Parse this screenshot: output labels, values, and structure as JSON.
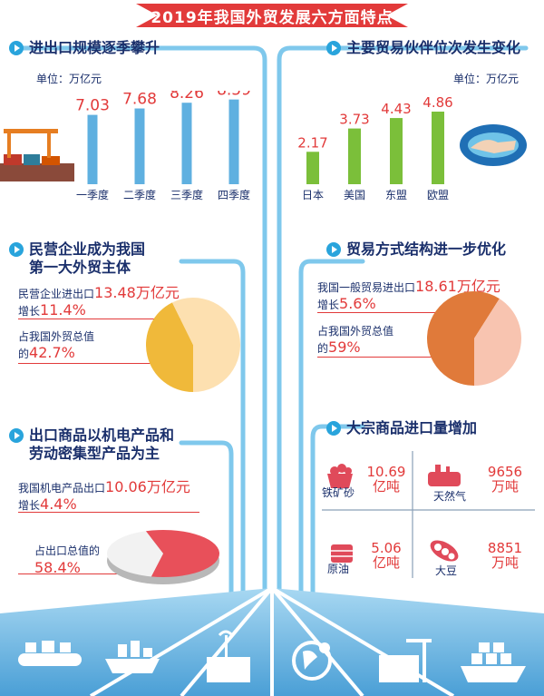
{
  "banner": {
    "title": "2019年我国外贸发展六方面特点"
  },
  "sections": {
    "scale": {
      "title": "进出口规模逐季攀升",
      "unit": "单位：万亿元"
    },
    "partners": {
      "title": "主要贸易伙伴位次发生变化",
      "unit": "单位：万亿元"
    },
    "private": {
      "title_line1": "民营企业成为我国",
      "title_line2": "第一大外贸主体",
      "line1_text": "民营企业进出口",
      "line1_value": "13.48万亿元",
      "line2_text": "增长",
      "line2_value": "11.4%",
      "line3_text": "占我国外贸总值",
      "line4_text": "的",
      "line4_value": "42.7%"
    },
    "structure": {
      "title": "贸易方式结构进一步优化",
      "line1_text": "我国一般贸易进出口",
      "line1_value": "18.61万亿元",
      "line2_text": "增长",
      "line2_value": "5.6%",
      "line3_text": "占我国外贸总值",
      "line4_text": "的",
      "line4_value": "59%"
    },
    "export": {
      "title_line1": "出口商品以机电产品和",
      "title_line2": "劳动密集型产品为主",
      "line1_text": "我国机电产品出口",
      "line1_value": "10.06万亿元",
      "line2_text": "增长",
      "line2_value": "4.4%",
      "line3_text": "占出口总值的",
      "line4_value": "58.4%"
    },
    "commodity": {
      "title": "大宗商品进口量增加",
      "items": [
        {
          "name": "铁矿砂",
          "value_num": "10.69",
          "value_unit": "亿吨",
          "icon": "iron-ore-icon"
        },
        {
          "name": "天然气",
          "value_num": "9656",
          "value_unit": "万吨",
          "icon": "natural-gas-icon"
        },
        {
          "name": "原油",
          "value_num": "5.06",
          "value_unit": "亿吨",
          "icon": "crude-oil-icon"
        },
        {
          "name": "大豆",
          "value_num": "8851",
          "value_unit": "万吨",
          "icon": "soybean-icon"
        }
      ]
    }
  },
  "footer_icons": [
    "conveyor-icon",
    "cargo-ship-icon",
    "crane-container-icon",
    "globe-location-icon",
    "warehouse-crane-icon",
    "container-ship-icon"
  ],
  "colors": {
    "accent_red": "#e23a3a",
    "blue_bar": "#5fb0e0",
    "green_bar": "#7bbf3a",
    "title_navy": "#1a2f6b",
    "footer_blue": "#4a9fd6"
  },
  "chart_data": [
    {
      "type": "bar",
      "title": "进出口规模逐季攀升",
      "unit": "单位：万亿元",
      "categories": [
        "一季度",
        "二季度",
        "三季度",
        "四季度"
      ],
      "values": [
        7.03,
        7.68,
        8.26,
        8.59
      ]
    },
    {
      "type": "bar",
      "title": "主要贸易伙伴位次发生变化",
      "unit": "单位：万亿元",
      "categories": [
        "日本",
        "美国",
        "东盟",
        "欧盟"
      ],
      "values": [
        2.17,
        3.73,
        4.43,
        4.86
      ]
    },
    {
      "type": "pie",
      "title": "民营企业成为我国第一大外贸主体",
      "slices": [
        {
          "label": "占我国外贸总值的",
          "value": 42.7
        },
        {
          "label": "",
          "value": 57.3
        }
      ]
    },
    {
      "type": "pie",
      "title": "贸易方式结构进一步优化",
      "slices": [
        {
          "label": "占我国外贸总值的",
          "value": 59
        },
        {
          "label": "",
          "value": 41
        }
      ]
    },
    {
      "type": "pie",
      "title": "出口商品以机电产品和劳动密集型产品为主",
      "slices": [
        {
          "label": "占出口总值的",
          "value": 58.4
        },
        {
          "label": "",
          "value": 41.6
        }
      ]
    }
  ]
}
